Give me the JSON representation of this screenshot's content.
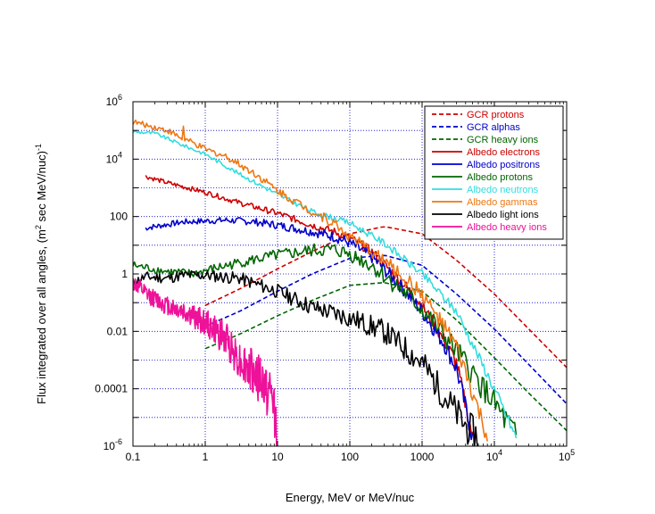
{
  "chart_data": {
    "type": "line",
    "title": "",
    "xlabel": "Energy, MeV or MeV/nuc",
    "ylabel": {
      "main": "Flux integrated over all angles, (m",
      "sup1": "2",
      "mid": " sec MeV/nuc)",
      "sup2": "-1"
    },
    "xscale": "log",
    "yscale": "log",
    "xlim": [
      0.1,
      100000
    ],
    "ylim": [
      1e-06,
      1000000
    ],
    "grid": true,
    "legend_position": "top-right",
    "x_ticks": [
      {
        "value": 0.1,
        "label": "0.1"
      },
      {
        "value": 1,
        "label": "1"
      },
      {
        "value": 10,
        "label": "10"
      },
      {
        "value": 100,
        "label": "100"
      },
      {
        "value": 1000,
        "label": "1000"
      },
      {
        "value": 10000,
        "label": "10",
        "sup": "4"
      },
      {
        "value": 100000,
        "label": "10",
        "sup": "5"
      }
    ],
    "y_ticks": [
      {
        "value": 1e-06,
        "label": "10",
        "sup": "-6"
      },
      {
        "value": 0.0001,
        "label": "0.0001"
      },
      {
        "value": 0.01,
        "label": "0.01"
      },
      {
        "value": 1,
        "label": "1"
      },
      {
        "value": 100,
        "label": "100"
      },
      {
        "value": 10000,
        "label": "10",
        "sup": "4"
      },
      {
        "value": 1000000,
        "label": "10",
        "sup": "6"
      }
    ],
    "series": [
      {
        "name": "GCR protons",
        "color": "#cc0000",
        "dash": true,
        "noise": 0,
        "x": [
          1,
          3,
          10,
          30,
          100,
          300,
          1000,
          3000,
          10000,
          30000,
          100000
        ],
        "y": [
          0.08,
          0.3,
          1.5,
          6,
          25,
          45,
          25,
          3,
          0.2,
          0.012,
          0.00055
        ]
      },
      {
        "name": "GCR alphas",
        "color": "#0000cc",
        "dash": true,
        "noise": 0,
        "x": [
          1,
          3,
          10,
          30,
          100,
          300,
          1000,
          3000,
          10000,
          30000,
          100000
        ],
        "y": [
          0.015,
          0.05,
          0.25,
          1,
          3.5,
          4.5,
          2,
          0.2,
          0.012,
          0.0007,
          3e-05
        ]
      },
      {
        "name": "GCR heavy ions",
        "color": "#006600",
        "dash": true,
        "noise": 0,
        "x": [
          1,
          3,
          10,
          30,
          100,
          300,
          1000,
          3000,
          10000,
          30000,
          100000
        ],
        "y": [
          0.0025,
          0.008,
          0.035,
          0.12,
          0.4,
          0.5,
          0.25,
          0.025,
          0.0012,
          7e-05,
          3.5e-06
        ]
      },
      {
        "name": "Albedo electrons",
        "color": "#cc0000",
        "dash": false,
        "noise": 0.08,
        "x": [
          0.15,
          0.3,
          1,
          3,
          10,
          30,
          60,
          100,
          200,
          500,
          1000,
          2000,
          3000,
          5000
        ],
        "y": [
          2500,
          1500,
          700,
          300,
          130,
          50,
          30,
          18,
          6,
          0.6,
          0.08,
          0.005,
          0.0008,
          2e-06
        ]
      },
      {
        "name": "Albedo positrons",
        "color": "#0000cc",
        "dash": false,
        "noise": 0.1,
        "x": [
          0.15,
          0.5,
          1,
          2,
          5,
          10,
          30,
          60,
          100,
          200,
          500,
          1000,
          2000,
          3000,
          5000
        ],
        "y": [
          40,
          65,
          70,
          75,
          65,
          50,
          30,
          20,
          12,
          4,
          0.4,
          0.05,
          0.004,
          0.0005,
          2e-06
        ]
      },
      {
        "name": "Albedo protons",
        "color": "#006600",
        "dash": false,
        "noise": 0.15,
        "x": [
          0.1,
          0.3,
          0.7,
          1,
          3,
          10,
          30,
          60,
          100,
          200,
          500,
          1000,
          3000,
          10000,
          20000
        ],
        "y": [
          2,
          1.2,
          1,
          1.3,
          2.5,
          4.5,
          6.5,
          7,
          5,
          2,
          0.3,
          0.06,
          0.002,
          3e-05,
          2e-06
        ]
      },
      {
        "name": "Albedo neutrons",
        "color": "#33dddd",
        "dash": false,
        "noise": 0.06,
        "x": [
          0.1,
          0.2,
          0.5,
          1,
          3,
          10,
          30,
          100,
          300,
          1000,
          3000,
          10000,
          20000
        ],
        "y": [
          90000,
          80000,
          30000,
          15000,
          3000,
          600,
          150,
          60,
          12,
          1,
          0.05,
          0.0001,
          2e-06
        ]
      },
      {
        "name": "Albedo gammas",
        "color": "#ee7711",
        "dash": false,
        "noise": 0.1,
        "x": [
          0.1,
          0.3,
          0.49,
          0.5,
          0.52,
          1,
          2,
          5,
          10,
          30,
          60,
          100,
          300,
          1000,
          3000,
          8000
        ],
        "y": [
          200000,
          100000,
          50000,
          150000,
          50000,
          22000,
          12000,
          3000,
          800,
          150,
          60,
          20,
          3,
          0.2,
          0.003,
          2e-06
        ]
      },
      {
        "name": "Albedo light ions",
        "color": "#000000",
        "dash": false,
        "noise": 0.18,
        "x": [
          0.1,
          0.15,
          0.3,
          0.5,
          1,
          3,
          10,
          30,
          100,
          300,
          1000,
          2000,
          4000,
          6000
        ],
        "y": [
          0.5,
          0.8,
          0.7,
          0.9,
          0.9,
          0.7,
          0.25,
          0.07,
          0.03,
          0.01,
          0.0008,
          6e-05,
          5e-06,
          2e-06
        ]
      },
      {
        "name": "Albedo heavy ions",
        "color": "#ee1199",
        "dash": false,
        "noise": 0.3,
        "x": [
          0.1,
          0.15,
          0.3,
          0.5,
          1,
          2,
          3,
          5,
          7,
          9,
          10
        ],
        "y": [
          0.5,
          0.2,
          0.08,
          0.05,
          0.02,
          0.005,
          0.001,
          0.0003,
          0.0001,
          3e-05,
          1e-06
        ]
      }
    ]
  }
}
